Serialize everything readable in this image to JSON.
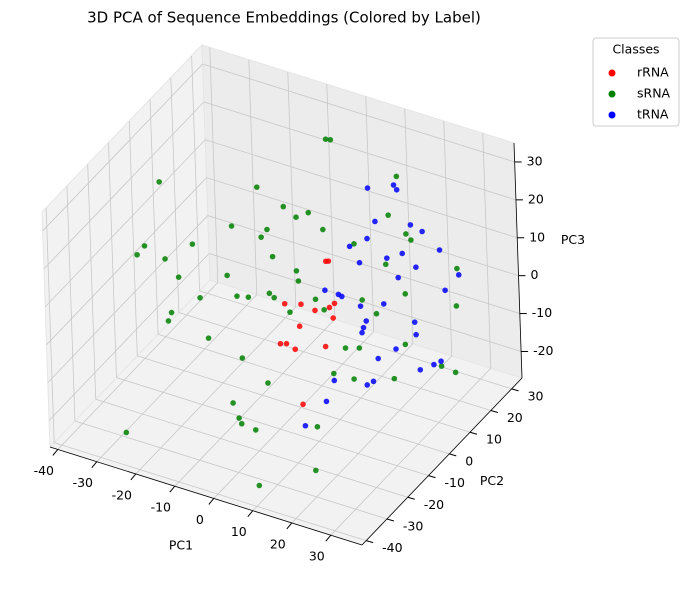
{
  "chart_data": {
    "type": "scatter3d",
    "title": "3D PCA of Sequence Embeddings (Colored by Label)",
    "x_label": "PC1",
    "y_label": "PC2",
    "z_label": "PC3",
    "xlim": [
      -42,
      38
    ],
    "ylim": [
      -42,
      35
    ],
    "zlim": [
      -27,
      35
    ],
    "xticks": [
      -40,
      -30,
      -20,
      -10,
      0,
      10,
      20,
      30
    ],
    "yticks": [
      -40,
      -30,
      -20,
      -10,
      0,
      10,
      20,
      30
    ],
    "zticks": [
      -20,
      -10,
      0,
      10,
      20,
      30
    ],
    "grid": true,
    "legend_title": "Classes",
    "legend_position": "upper right outside",
    "series": [
      {
        "name": "rRNA",
        "color": "#ff0000",
        "x": [
          -5,
          0,
          2,
          -3,
          4,
          -1,
          6,
          1,
          -2,
          3,
          8,
          -6,
          5,
          0
        ],
        "y": [
          3,
          8,
          -2,
          6,
          10,
          0,
          4,
          12,
          -5,
          7,
          2,
          5,
          -8,
          15
        ],
        "z": [
          -3,
          -6,
          2,
          -10,
          -4,
          -12,
          -1,
          5,
          -8,
          -14,
          -2,
          -15,
          -20,
          3
        ]
      },
      {
        "name": "sRNA",
        "color": "#008000",
        "x": [
          -30,
          -25,
          -28,
          -20,
          -15,
          -22,
          -18,
          -10,
          -12,
          -8,
          -5,
          -14,
          -26,
          -32,
          -20,
          -6,
          -2,
          0,
          4,
          -10,
          2,
          6,
          10,
          12,
          -4,
          -16,
          -24,
          8,
          14,
          18,
          22,
          26,
          30,
          28,
          20,
          16,
          24,
          32,
          -8,
          -12,
          0,
          6,
          -20,
          -28,
          10,
          4,
          -2,
          12,
          18,
          -6,
          26,
          30,
          -14,
          2,
          8,
          -18,
          14,
          22,
          -24,
          34
        ],
        "y": [
          -20,
          -10,
          5,
          -25,
          -15,
          10,
          0,
          -30,
          -5,
          15,
          -20,
          20,
          -35,
          -5,
          25,
          0,
          10,
          -15,
          20,
          5,
          -25,
          -10,
          30,
          15,
          25,
          -30,
          15,
          -35,
          5,
          -20,
          10,
          -5,
          20,
          0,
          -30,
          25,
          -15,
          15,
          30,
          -10,
          0,
          5,
          20,
          -20,
          -5,
          -35,
          12,
          22,
          -25,
          -12,
          28,
          -10,
          8,
          18,
          -18,
          -28,
          0,
          12,
          30,
          5
        ],
        "z": [
          15,
          5,
          -10,
          20,
          -5,
          8,
          2,
          30,
          -15,
          12,
          -20,
          10,
          -22,
          25,
          -8,
          0,
          18,
          -12,
          6,
          -3,
          -18,
          14,
          20,
          -7,
          28,
          10,
          -14,
          -25,
          3,
          16,
          -9,
          22,
          -2,
          12,
          -20,
          8,
          5,
          -16,
          24,
          -24,
          9,
          -19,
          0,
          18,
          26,
          -10,
          -6,
          15,
          -12,
          7,
          2,
          -4,
          22,
          -21,
          11,
          6,
          -15,
          19,
          -5,
          -8
        ]
      },
      {
        "name": "tRNA",
        "color": "#0000ff",
        "x": [
          10,
          14,
          18,
          22,
          26,
          30,
          12,
          16,
          20,
          24,
          28,
          32,
          8,
          15,
          19,
          23,
          27,
          31,
          11,
          17,
          21,
          25,
          29,
          13,
          18,
          22,
          26,
          30,
          9,
          16,
          20,
          24,
          28,
          14,
          19,
          33
        ],
        "y": [
          -5,
          0,
          5,
          10,
          -10,
          15,
          8,
          -8,
          12,
          2,
          -3,
          18,
          20,
          -15,
          6,
          -12,
          14,
          0,
          -18,
          16,
          -6,
          22,
          4,
          10,
          -2,
          -10,
          8,
          12,
          3,
          25,
          -20,
          16,
          -8,
          6,
          0,
          -5
        ],
        "z": [
          10,
          20,
          25,
          15,
          0,
          5,
          -8,
          12,
          30,
          -5,
          18,
          8,
          22,
          -12,
          3,
          14,
          -15,
          20,
          -18,
          28,
          6,
          10,
          -10,
          16,
          1,
          24,
          -4,
          -12,
          4,
          12,
          -2,
          18,
          26,
          -20,
          -14,
          9
        ]
      }
    ]
  }
}
